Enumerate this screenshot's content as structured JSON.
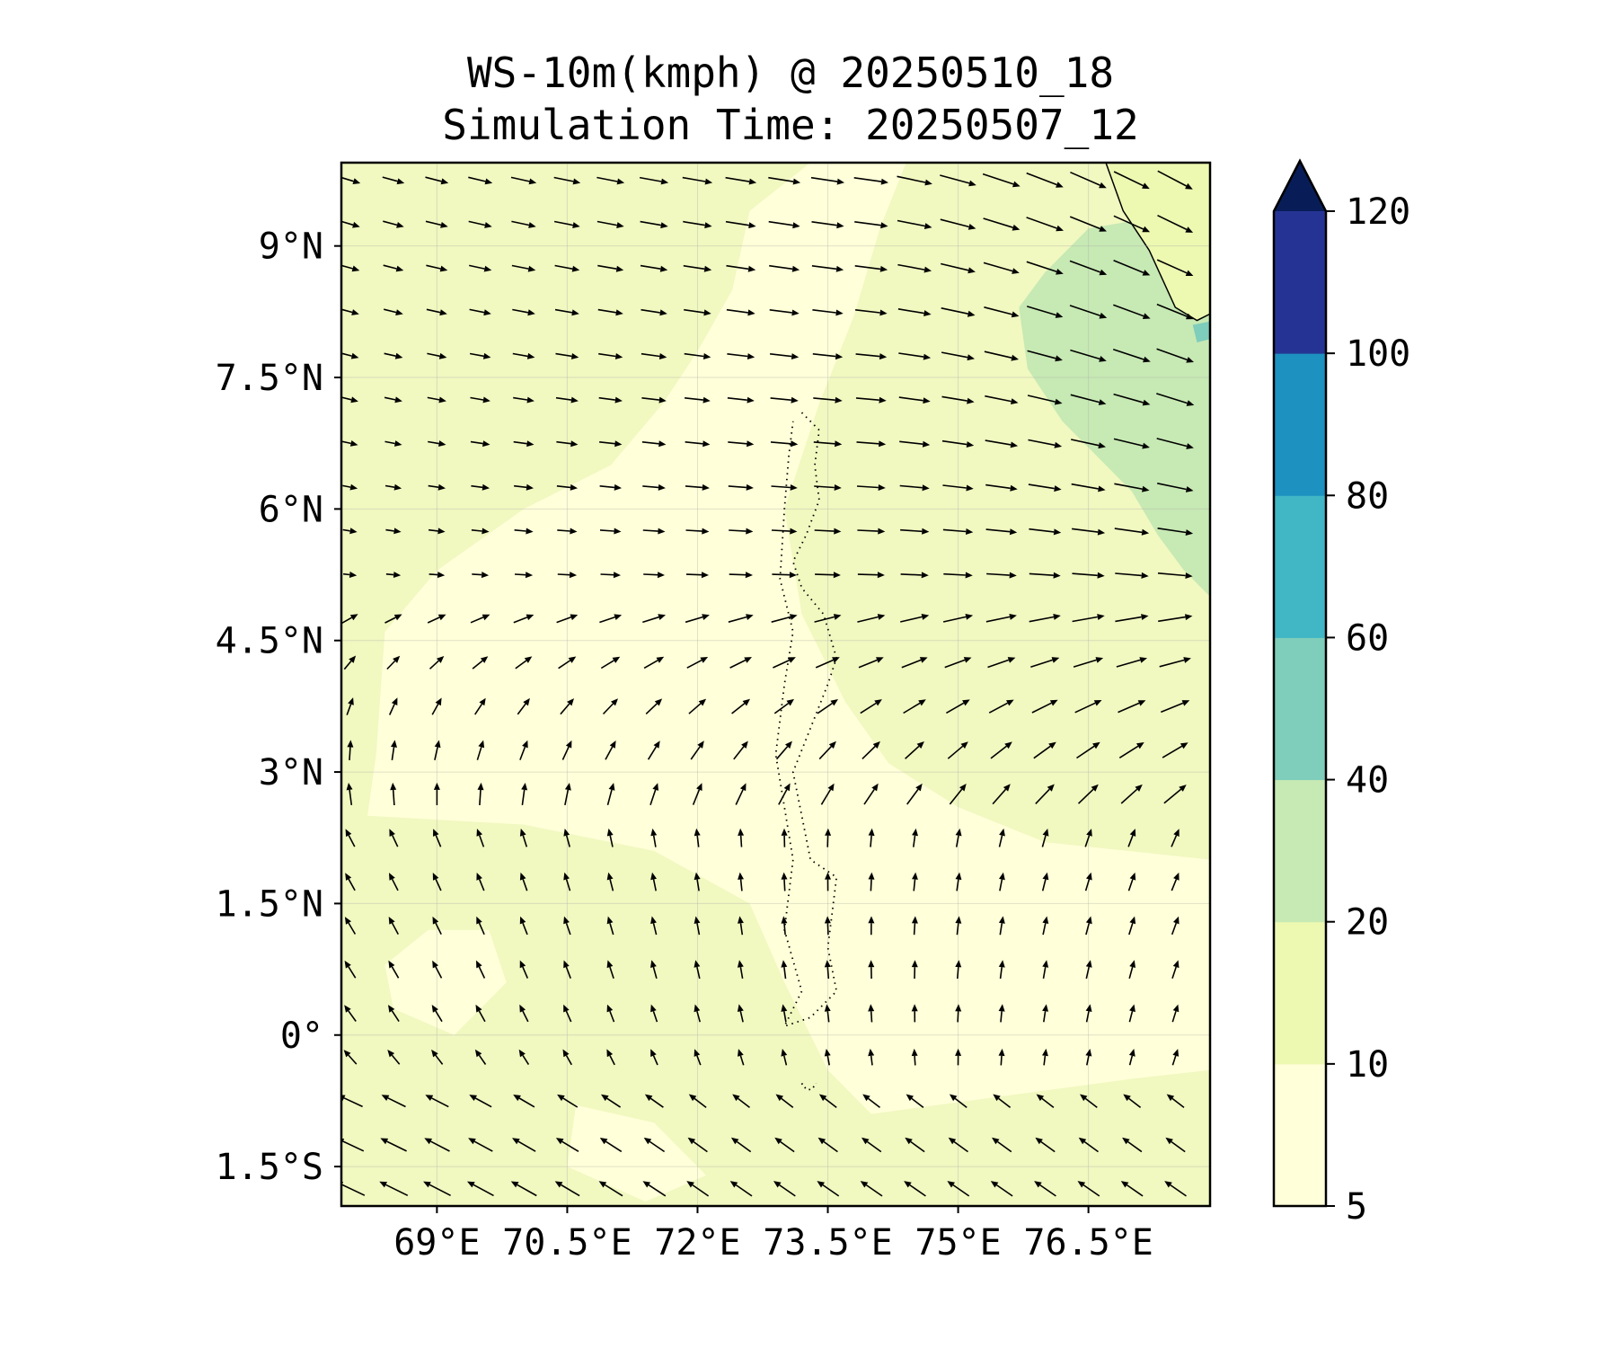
{
  "title": {
    "line1": "WS-10m(kmph) @ 20250510_18",
    "line2": "Simulation Time: 20250507_12"
  },
  "chart_data": {
    "type": "heatmap",
    "variable": "10 m wind speed (kmph) with wind direction vectors",
    "region": {
      "lon_range": [
        67.9,
        77.9
      ],
      "lat_range": [
        -1.95,
        9.95
      ]
    },
    "x_ticks": [
      {
        "value": 69,
        "label": "69°E"
      },
      {
        "value": 70.5,
        "label": "70.5°E"
      },
      {
        "value": 72,
        "label": "72°E"
      },
      {
        "value": 73.5,
        "label": "73.5°E"
      },
      {
        "value": 75,
        "label": "75°E"
      },
      {
        "value": 76.5,
        "label": "76.5°E"
      }
    ],
    "y_ticks": [
      {
        "value": 9,
        "label": "9°N"
      },
      {
        "value": 7.5,
        "label": "7.5°N"
      },
      {
        "value": 6,
        "label": "6°N"
      },
      {
        "value": 4.5,
        "label": "4.5°N"
      },
      {
        "value": 3,
        "label": "3°N"
      },
      {
        "value": 1.5,
        "label": "1.5°N"
      },
      {
        "value": 0,
        "label": "0°"
      },
      {
        "value": -1.5,
        "label": "1.5°S"
      }
    ],
    "grid": true,
    "colorbar": {
      "position": "right",
      "levels": [
        5,
        10,
        20,
        40,
        60,
        80,
        100,
        120
      ],
      "labels": [
        "5",
        "10",
        "20",
        "40",
        "60",
        "80",
        "100",
        "120"
      ],
      "colors": [
        "#ffffd9",
        "#edf8b1",
        "#c7e9b4",
        "#7fcdbb",
        "#41b6c4",
        "#1d91c0",
        "#253494",
        "#081d58"
      ],
      "extend": "max"
    },
    "background_level_color": "#f1f8c0",
    "wind_speed_regions": [
      {
        "description": "northeast near Indian coast",
        "lon": [
          75.8,
          77.9
        ],
        "lat": [
          5.0,
          9.2
        ],
        "class": "20-40"
      },
      {
        "description": "west/central band",
        "lon": [
          67.9,
          75.8
        ],
        "lat": [
          2.5,
          9.95
        ],
        "class": "10-20"
      },
      {
        "description": "equatorial calm",
        "lon": [
          72.5,
          77.9
        ],
        "lat": [
          -1.95,
          2.0
        ],
        "class": "5-10"
      }
    ],
    "wind_vectors": {
      "lon_spacing": 0.5,
      "lat_spacing": 0.5,
      "regime": [
        {
          "lat_range": [
            5.0,
            9.95
          ],
          "direction": "westerly to north-westerly",
          "speed_kmph": [
            10,
            30
          ]
        },
        {
          "lat_range": [
            2.5,
            5.0
          ],
          "direction": "south-westerly to westerly",
          "speed_kmph": [
            8,
            20
          ]
        },
        {
          "lat_range": [
            -0.5,
            2.5
          ],
          "direction": "southerly",
          "speed_kmph": [
            5,
            12
          ]
        },
        {
          "lat_range": [
            -1.95,
            -0.5
          ],
          "direction": "south-easterly",
          "speed_kmph": [
            8,
            18
          ]
        }
      ]
    },
    "features": [
      "Maldives atolls (dotted outline, ~73.0–73.7°E, -0.7–7.1°N)",
      "Southern tip of India coastline (top right)"
    ]
  }
}
